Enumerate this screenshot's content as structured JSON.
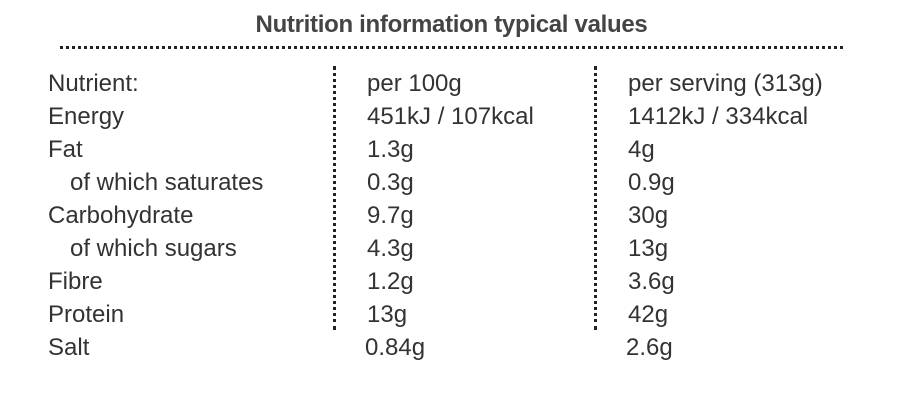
{
  "title": "Nutrition information typical values",
  "table": {
    "header": [
      "Nutrient:",
      "per 100g",
      "per serving (313g)"
    ],
    "rows": [
      [
        "Energy",
        "451kJ / 107kcal",
        "1412kJ / 334kcal"
      ],
      [
        "Fat",
        "1.3g",
        "4g"
      ],
      [
        "of which saturates",
        "0.3g",
        "0.9g"
      ],
      [
        "Carbohydrate",
        "9.7g",
        "30g"
      ],
      [
        "of which sugars",
        "4.3g",
        "13g"
      ],
      [
        "Fibre",
        "1.2g",
        "3.6g"
      ],
      [
        "Protein",
        "13g",
        "42g"
      ],
      [
        "Salt",
        "0.84g",
        "2.6g"
      ]
    ]
  }
}
